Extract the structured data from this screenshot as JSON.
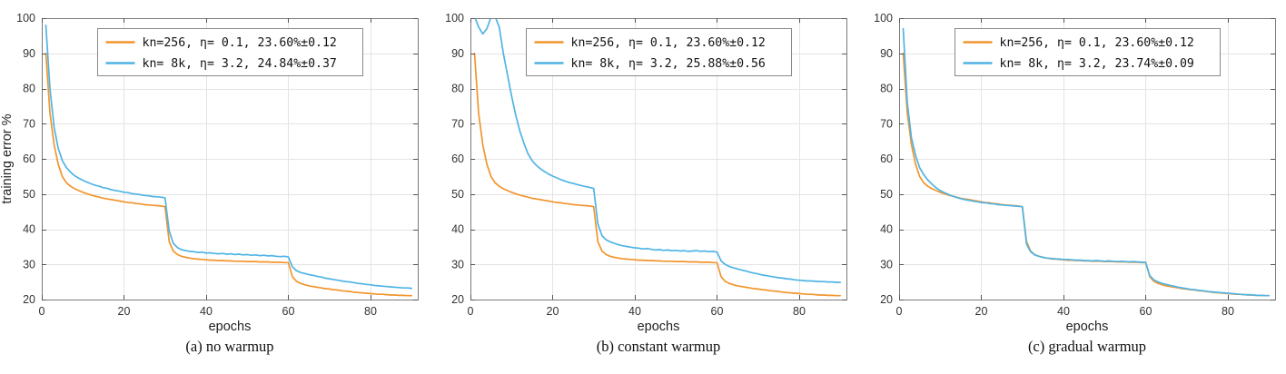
{
  "chart_data": [
    {
      "type": "line",
      "caption": "(a) no warmup",
      "xlabel": "epochs",
      "ylabel": "training error %",
      "xlim": [
        0,
        91.5
      ],
      "ylim": [
        20,
        100
      ],
      "xticks": [
        0,
        20,
        40,
        60,
        80
      ],
      "yticks": [
        20,
        30,
        40,
        50,
        60,
        70,
        80,
        90,
        100
      ],
      "grid": true,
      "legend_position": "top-center",
      "series": [
        {
          "name": "kn=256, η= 0.1, 23.60%±0.12",
          "color": "#F2952D",
          "x_start": 1,
          "values": [
            90.0,
            73.0,
            64.0,
            58.5,
            55.0,
            53.2,
            52.2,
            51.5,
            51.0,
            50.5,
            50.1,
            49.7,
            49.4,
            49.1,
            48.8,
            48.6,
            48.4,
            48.2,
            48.0,
            47.8,
            47.6,
            47.5,
            47.3,
            47.2,
            47.0,
            46.9,
            46.8,
            46.7,
            46.6,
            46.4,
            36.5,
            33.8,
            32.8,
            32.3,
            32.0,
            31.8,
            31.6,
            31.5,
            31.4,
            31.3,
            31.2,
            31.2,
            31.1,
            31.1,
            31.0,
            31.0,
            30.9,
            30.9,
            30.9,
            30.8,
            30.8,
            30.8,
            30.7,
            30.7,
            30.7,
            30.6,
            30.6,
            30.6,
            30.5,
            30.5,
            26.5,
            25.2,
            24.6,
            24.2,
            23.9,
            23.7,
            23.5,
            23.3,
            23.1,
            23.0,
            22.8,
            22.7,
            22.5,
            22.4,
            22.3,
            22.1,
            22.0,
            21.9,
            21.8,
            21.7,
            21.6,
            21.5,
            21.5,
            21.4,
            21.3,
            21.3,
            21.2,
            21.2,
            21.1,
            21.1
          ]
        },
        {
          "name": "kn= 8k, η= 3.2, 24.84%±0.37",
          "color": "#4FB4E4",
          "x_start": 1,
          "values": [
            98.0,
            80.0,
            69.0,
            63.0,
            59.5,
            57.5,
            56.2,
            55.2,
            54.5,
            53.9,
            53.4,
            52.9,
            52.5,
            52.2,
            51.8,
            51.6,
            51.2,
            51.0,
            50.8,
            50.5,
            50.4,
            50.1,
            50.0,
            49.8,
            49.6,
            49.5,
            49.3,
            49.2,
            49.1,
            48.9,
            39.5,
            36.0,
            34.8,
            34.2,
            33.9,
            33.7,
            33.6,
            33.4,
            33.5,
            33.2,
            33.3,
            33.1,
            33.0,
            33.1,
            32.9,
            33.0,
            32.8,
            32.9,
            32.7,
            32.8,
            32.6,
            32.7,
            32.5,
            32.6,
            32.4,
            32.5,
            32.3,
            32.2,
            32.3,
            32.1,
            29.3,
            28.2,
            27.7,
            27.4,
            27.1,
            26.9,
            26.6,
            26.4,
            26.1,
            25.9,
            25.7,
            25.5,
            25.3,
            25.1,
            25.0,
            24.8,
            24.6,
            24.5,
            24.3,
            24.2,
            24.0,
            23.9,
            23.8,
            23.7,
            23.6,
            23.5,
            23.4,
            23.3,
            23.3,
            23.2
          ]
        }
      ]
    },
    {
      "type": "line",
      "caption": "(b) constant warmup",
      "xlabel": "epochs",
      "ylabel": "",
      "xlim": [
        0,
        91.5
      ],
      "ylim": [
        20,
        100
      ],
      "xticks": [
        0,
        20,
        40,
        60,
        80
      ],
      "yticks": [
        20,
        30,
        40,
        50,
        60,
        70,
        80,
        90,
        100
      ],
      "grid": true,
      "legend_position": "top-center",
      "series": [
        {
          "name": "kn=256, η= 0.1, 23.60%±0.12",
          "color": "#F2952D",
          "x_start": 1,
          "values": [
            90.0,
            73.0,
            64.0,
            58.5,
            55.0,
            53.2,
            52.2,
            51.5,
            51.0,
            50.5,
            50.1,
            49.7,
            49.4,
            49.1,
            48.8,
            48.6,
            48.4,
            48.2,
            48.0,
            47.8,
            47.6,
            47.5,
            47.3,
            47.2,
            47.0,
            46.9,
            46.8,
            46.7,
            46.6,
            46.4,
            36.5,
            33.8,
            32.8,
            32.3,
            32.0,
            31.8,
            31.6,
            31.5,
            31.4,
            31.3,
            31.2,
            31.2,
            31.1,
            31.1,
            31.0,
            31.0,
            30.9,
            30.9,
            30.9,
            30.8,
            30.8,
            30.8,
            30.7,
            30.7,
            30.7,
            30.6,
            30.6,
            30.6,
            30.5,
            30.5,
            26.5,
            25.2,
            24.6,
            24.2,
            23.9,
            23.7,
            23.5,
            23.3,
            23.1,
            23.0,
            22.8,
            22.7,
            22.5,
            22.4,
            22.3,
            22.1,
            22.0,
            21.9,
            21.8,
            21.7,
            21.6,
            21.5,
            21.5,
            21.4,
            21.3,
            21.3,
            21.2,
            21.2,
            21.1,
            21.1
          ]
        },
        {
          "name": "kn= 8k, η= 3.2, 25.88%±0.56",
          "color": "#4FB4E4",
          "x_start": 1,
          "values": [
            100.5,
            97.5,
            95.5,
            97.0,
            100.3,
            100.5,
            97.5,
            90.0,
            84.0,
            78.0,
            72.5,
            68.0,
            64.5,
            61.5,
            59.5,
            58.2,
            57.2,
            56.4,
            55.7,
            55.1,
            54.6,
            54.1,
            53.7,
            53.3,
            53.0,
            52.7,
            52.4,
            52.1,
            51.9,
            51.6,
            41.5,
            38.2,
            37.0,
            36.4,
            36.0,
            35.6,
            35.3,
            35.1,
            34.9,
            34.7,
            34.6,
            34.4,
            34.5,
            34.3,
            34.1,
            34.2,
            34.0,
            34.1,
            33.9,
            34.0,
            33.8,
            33.9,
            33.7,
            33.8,
            33.9,
            33.7,
            33.8,
            33.6,
            33.7,
            33.5,
            31.0,
            30.0,
            29.4,
            29.0,
            28.7,
            28.4,
            28.1,
            27.8,
            27.5,
            27.3,
            27.0,
            26.8,
            26.6,
            26.4,
            26.2,
            26.1,
            25.9,
            25.8,
            25.6,
            25.5,
            25.4,
            25.3,
            25.3,
            25.2,
            25.1,
            25.1,
            25.0,
            25.0,
            24.9,
            24.9
          ]
        }
      ]
    },
    {
      "type": "line",
      "caption": "(c) gradual warmup",
      "xlabel": "epochs",
      "ylabel": "",
      "xlim": [
        0,
        91.5
      ],
      "ylim": [
        20,
        100
      ],
      "xticks": [
        0,
        20,
        40,
        60,
        80
      ],
      "yticks": [
        20,
        30,
        40,
        50,
        60,
        70,
        80,
        90,
        100
      ],
      "grid": true,
      "legend_position": "top-center",
      "series": [
        {
          "name": "kn=256, η= 0.1, 23.60%±0.12",
          "color": "#F2952D",
          "x_start": 1,
          "values": [
            90.0,
            73.0,
            64.0,
            58.5,
            55.0,
            53.2,
            52.2,
            51.5,
            51.0,
            50.5,
            50.1,
            49.7,
            49.4,
            49.1,
            48.8,
            48.6,
            48.4,
            48.2,
            48.0,
            47.8,
            47.6,
            47.5,
            47.3,
            47.2,
            47.0,
            46.9,
            46.8,
            46.7,
            46.6,
            46.4,
            36.5,
            33.8,
            32.8,
            32.3,
            32.0,
            31.8,
            31.6,
            31.5,
            31.4,
            31.3,
            31.2,
            31.2,
            31.1,
            31.1,
            31.0,
            31.0,
            30.9,
            30.9,
            30.9,
            30.8,
            30.8,
            30.8,
            30.7,
            30.7,
            30.7,
            30.6,
            30.6,
            30.6,
            30.5,
            30.5,
            26.5,
            25.2,
            24.6,
            24.2,
            23.9,
            23.7,
            23.5,
            23.3,
            23.1,
            23.0,
            22.8,
            22.7,
            22.5,
            22.4,
            22.3,
            22.1,
            22.0,
            21.9,
            21.8,
            21.7,
            21.6,
            21.5,
            21.5,
            21.4,
            21.3,
            21.3,
            21.2,
            21.2,
            21.1,
            21.1
          ]
        },
        {
          "name": "kn= 8k, η= 3.2, 23.74%±0.09",
          "color": "#4FB4E4",
          "x_start": 1,
          "values": [
            97.0,
            76.0,
            66.0,
            61.0,
            57.5,
            55.5,
            54.0,
            52.8,
            51.8,
            51.0,
            50.4,
            49.9,
            49.4,
            49.0,
            48.7,
            48.4,
            48.2,
            48.0,
            47.8,
            47.6,
            47.5,
            47.3,
            47.2,
            47.0,
            46.9,
            46.8,
            46.7,
            46.6,
            46.5,
            46.4,
            35.8,
            33.6,
            32.7,
            32.3,
            32.0,
            31.8,
            31.7,
            31.6,
            31.5,
            31.4,
            31.4,
            31.3,
            31.2,
            31.2,
            31.1,
            31.1,
            31.0,
            31.1,
            31.0,
            30.9,
            31.0,
            30.9,
            30.8,
            30.9,
            30.8,
            30.7,
            30.8,
            30.7,
            30.6,
            30.6,
            26.8,
            25.6,
            25.0,
            24.6,
            24.3,
            24.0,
            23.8,
            23.5,
            23.3,
            23.1,
            22.9,
            22.8,
            22.6,
            22.5,
            22.3,
            22.2,
            22.1,
            22.0,
            21.9,
            21.8,
            21.7,
            21.6,
            21.5,
            21.4,
            21.4,
            21.3,
            21.2,
            21.2,
            21.1,
            21.1
          ]
        }
      ]
    }
  ]
}
